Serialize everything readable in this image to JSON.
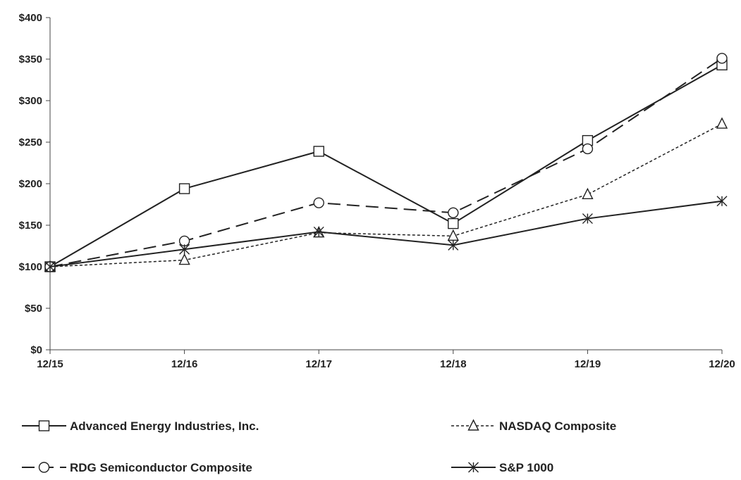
{
  "chart_data": {
    "type": "line",
    "x": [
      "12/15",
      "12/16",
      "12/17",
      "12/18",
      "12/19",
      "12/20"
    ],
    "y_ticks": [
      "$0",
      "$50",
      "$100",
      "$150",
      "$200",
      "$250",
      "$300",
      "$350",
      "$400"
    ],
    "ylim": [
      0,
      400
    ],
    "grid": false,
    "legend_position": "bottom",
    "series": [
      {
        "name": "Advanced Energy Industries, Inc.",
        "values": [
          100,
          194,
          239,
          152,
          252,
          343
        ],
        "marker": "square",
        "dash": "solid"
      },
      {
        "name": "NASDAQ Composite",
        "values": [
          100,
          108,
          141,
          137,
          187,
          272
        ],
        "marker": "triangle",
        "dash": "dotted"
      },
      {
        "name": "RDG Semiconductor Composite",
        "values": [
          100,
          131,
          177,
          165,
          242,
          351
        ],
        "marker": "circle",
        "dash": "dashed"
      },
      {
        "name": "S&P 1000",
        "values": [
          100,
          121,
          142,
          126,
          158,
          179
        ],
        "marker": "asterisk",
        "dash": "solid"
      }
    ],
    "colors": {
      "line": "#222222",
      "axis": "#444444"
    }
  }
}
